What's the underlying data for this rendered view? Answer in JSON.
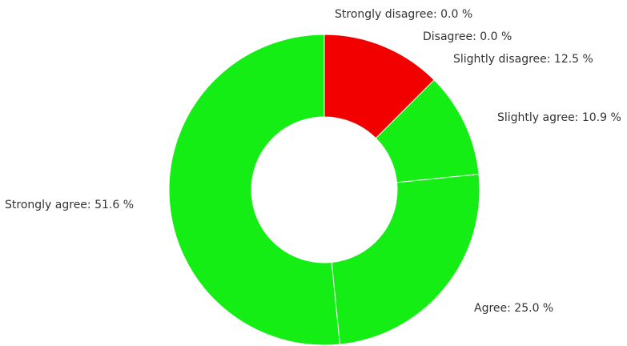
{
  "chart_data": {
    "type": "pie",
    "donut": true,
    "start": "top",
    "direction": "clockwise",
    "slices": [
      {
        "label": "Strongly disagree",
        "value": 0.0,
        "text": "Strongly disagree: 0.0 %",
        "color": "#f20000"
      },
      {
        "label": "Disagree",
        "value": 0.0,
        "text": "Disagree: 0.0 %",
        "color": "#f20000"
      },
      {
        "label": "Slightly disagree",
        "value": 12.5,
        "text": "Slightly disagree: 12.5 %",
        "color": "#f20000"
      },
      {
        "label": "Slightly agree",
        "value": 10.9,
        "text": "Slightly agree: 10.9 %",
        "color": "#15ee15"
      },
      {
        "label": "Agree",
        "value": 25.0,
        "text": "Agree: 25.0 %",
        "color": "#15ee15"
      },
      {
        "label": "Strongly agree",
        "value": 51.6,
        "text": "Strongly agree: 51.6 %",
        "color": "#15ee15"
      }
    ]
  }
}
